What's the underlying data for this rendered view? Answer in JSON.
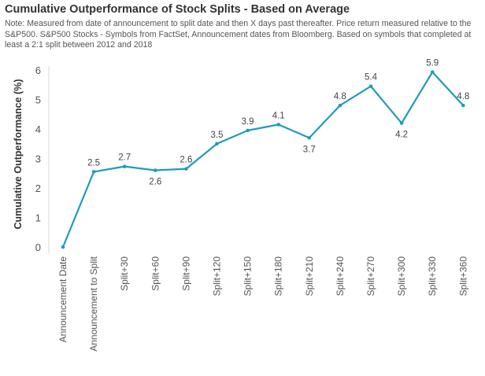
{
  "title": "Cumulative Outperformance of Stock Splits - Based on Average",
  "note": "Note: Measured from date of announcement to split date and then X days past thereafter. Price return measured relative to the S&P500. S&P500 Stocks - Symbols from FactSet, Announcement dates from Bloomberg. Based on symbols that completed at least a 2:1 split between 2012 and 2018",
  "chart_data": {
    "type": "line",
    "title": "Cumulative Outperformance of Stock Splits - Based on Average",
    "xlabel": "",
    "ylabel": "Cumulative Outperformance (%)",
    "ylim": [
      0,
      6
    ],
    "yticks": [
      0,
      1,
      2,
      3,
      4,
      5,
      6
    ],
    "grid": false,
    "categories": [
      "Announcement Date",
      "Announcement to Split",
      "Split+30",
      "Split+60",
      "Split+90",
      "Split+120",
      "Split+150",
      "Split+180",
      "Split+210",
      "Split+240",
      "Split+270",
      "Split+300",
      "Split+330",
      "Split+360"
    ],
    "values": [
      0,
      2.55,
      2.73,
      2.6,
      2.65,
      3.5,
      3.95,
      4.15,
      3.7,
      4.8,
      5.45,
      4.2,
      5.93,
      4.8
    ],
    "data_labels": [
      "",
      "2.5",
      "2.7",
      "2.6",
      "2.6",
      "3.5",
      "3.9",
      "4.1",
      "3.7",
      "4.8",
      "5.4",
      "4.2",
      "5.9",
      "4.8"
    ],
    "colors": {
      "line": "#1f9bbd",
      "text": "#555555",
      "axis": "#cccccc"
    }
  }
}
